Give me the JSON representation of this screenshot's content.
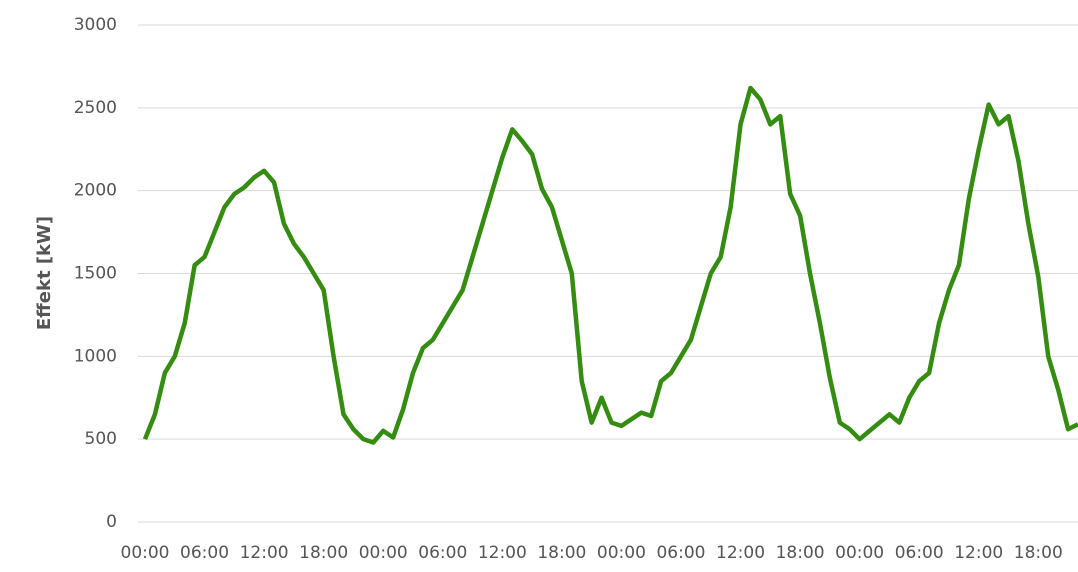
{
  "chart_data": {
    "type": "line",
    "y_label": "Effekt [kW]",
    "categories": [
      "00:00",
      null,
      null,
      null,
      null,
      null,
      "06:00",
      null,
      null,
      null,
      null,
      null,
      "12:00",
      null,
      null,
      null,
      null,
      null,
      "18:00",
      null,
      null,
      null,
      null,
      null,
      "00:00",
      null,
      null,
      null,
      null,
      null,
      "06:00",
      null,
      null,
      null,
      null,
      null,
      "12:00",
      null,
      null,
      null,
      null,
      null,
      "18:00",
      null,
      null,
      null,
      null,
      null,
      "00:00",
      null,
      null,
      null,
      null,
      null,
      "06:00",
      null,
      null,
      null,
      null,
      null,
      "12:00",
      null,
      null,
      null,
      null,
      null,
      "18:00",
      null,
      null,
      null,
      null,
      null,
      "00:00",
      null,
      null,
      null,
      null,
      null,
      "06:00",
      null,
      null,
      null,
      null,
      null,
      "12:00",
      null,
      null,
      null,
      null,
      null,
      "18:00",
      null,
      null,
      null,
      null
    ],
    "series": [
      {
        "name": "Effekt",
        "color": "#348c10",
        "values": [
          500,
          650,
          900,
          1000,
          1200,
          1550,
          1600,
          1750,
          1900,
          1980,
          2020,
          2080,
          2120,
          2050,
          1800,
          1680,
          1600,
          1500,
          1400,
          1000,
          650,
          560,
          500,
          480,
          550,
          510,
          680,
          900,
          1050,
          1100,
          1200,
          1300,
          1400,
          1600,
          1800,
          2000,
          2200,
          2370,
          2300,
          2220,
          2010,
          1900,
          1700,
          1500,
          850,
          600,
          750,
          600,
          580,
          620,
          660,
          640,
          850,
          900,
          1000,
          1100,
          1300,
          1500,
          1600,
          1900,
          2400,
          2620,
          2550,
          2400,
          2450,
          1980,
          1850,
          1500,
          1200,
          870,
          600,
          560,
          500,
          550,
          600,
          650,
          600,
          750,
          850,
          900,
          1200,
          1400,
          1550,
          1950,
          2250,
          2520,
          2400,
          2450,
          2180,
          1800,
          1480,
          1000,
          800,
          560,
          590
        ]
      }
    ],
    "ylim": [
      0,
      3000
    ],
    "yticks": [
      0,
      500,
      1000,
      1500,
      2000,
      2500,
      3000
    ],
    "grid": true
  }
}
